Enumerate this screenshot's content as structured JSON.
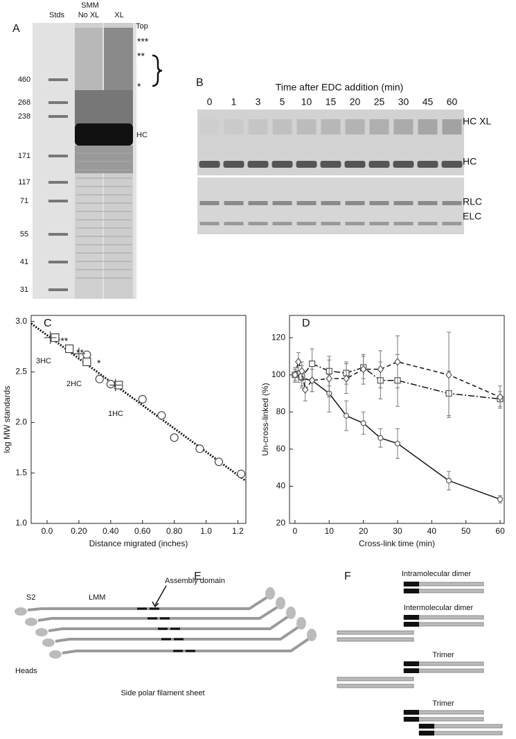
{
  "gel_a": {
    "panel_label": "A",
    "header": "SMM",
    "lanes": [
      "Stds",
      "No XL",
      "XL"
    ],
    "top_label": "Top",
    "stars": [
      "***",
      "**",
      "*"
    ],
    "band_label": "HC",
    "ladder": [
      460,
      268,
      238,
      171,
      117,
      71,
      55,
      41,
      31
    ]
  },
  "gel_b": {
    "panel_label": "B",
    "title": "Time after EDC addition (min)",
    "times": [
      0,
      1,
      3,
      5,
      10,
      15,
      20,
      25,
      30,
      45,
      60
    ],
    "band_labels": [
      "HC XL",
      "HC",
      "RLC",
      "ELC"
    ]
  },
  "chart_data": [
    {
      "type": "scatter",
      "panel_label": "C",
      "x_label": "Distance migrated (inches)",
      "y_label": "log MW standards",
      "xlim": [
        -0.1,
        1.25
      ],
      "ylim": [
        1.0,
        3.06
      ],
      "xticks": [
        {
          "value": 0,
          "label": "0.0"
        },
        {
          "value": 0.2,
          "label": "0.20"
        },
        {
          "value": 0.4,
          "label": "0.40"
        },
        {
          "value": 0.6,
          "label": "0.60"
        },
        {
          "value": 0.8,
          "label": "0.80"
        },
        {
          "value": 1,
          "label": "1.0"
        },
        {
          "value": 1.2,
          "label": "1.2"
        }
      ],
      "yticks": [
        {
          "value": 1,
          "label": "1.0"
        },
        {
          "value": 1.5,
          "label": "1.5"
        },
        {
          "value": 2,
          "label": "2.0"
        },
        {
          "value": 2.5,
          "label": "2.5"
        },
        {
          "value": 3,
          "label": "3.0"
        }
      ],
      "annotations": [
        "***",
        "**",
        "*",
        "3HC",
        "2HC",
        "1HC"
      ],
      "series": [
        {
          "color": "#111",
          "line_style": "dotted",
          "x": [
            -0.1,
            1.25
          ],
          "values": [
            2.98,
            1.42
          ]
        },
        {
          "color": "#444",
          "marker": "circle",
          "x": [
            0.25,
            0.33,
            0.4,
            0.6,
            0.72,
            0.8,
            0.96,
            1.08,
            1.22
          ],
          "values": [
            2.67,
            2.43,
            2.38,
            2.23,
            2.07,
            1.85,
            1.74,
            1.61,
            1.49
          ]
        },
        {
          "color": "#444",
          "marker": "square",
          "x": [
            0.05,
            0.14,
            0.25,
            0.45
          ],
          "values": [
            2.84,
            2.73,
            2.6,
            2.37
          ]
        },
        {
          "color": "#444",
          "marker": "plus",
          "x": [
            0.02,
            0.2,
            0.43
          ],
          "values": [
            2.84,
            2.68,
            2.37
          ]
        }
      ]
    },
    {
      "type": "line",
      "panel_label": "D",
      "x_label": "Cross-link time (min)",
      "y_label": "Un-cross-linked (%)",
      "xlim": [
        -1.6,
        61.2
      ],
      "ylim": [
        20,
        132
      ],
      "xticks": [
        0,
        10,
        20,
        30,
        40,
        50,
        60
      ],
      "yticks": [
        20,
        40,
        60,
        80,
        100,
        120
      ],
      "series": [
        {
          "color": "#111",
          "marker": "circle",
          "line_style": "solid",
          "x": [
            0,
            1,
            2,
            5,
            10,
            15,
            20,
            25,
            30,
            45,
            60
          ],
          "values": [
            100,
            101,
            98,
            97,
            90,
            78,
            74,
            66,
            63,
            43,
            33
          ],
          "errors": [
            3,
            5,
            4,
            6,
            10,
            8,
            6,
            5,
            8,
            5,
            2
          ]
        },
        {
          "color": "#111",
          "marker": "square",
          "line_style": "dashdot",
          "x": [
            0,
            2,
            5,
            10,
            15,
            20,
            25,
            30,
            45,
            60
          ],
          "values": [
            100,
            99,
            106,
            102,
            101,
            104,
            97,
            97,
            90,
            87
          ],
          "errors": [
            4,
            6,
            8,
            8,
            6,
            6,
            10,
            14,
            12,
            4
          ]
        },
        {
          "color": "#111",
          "marker": "diamond",
          "line_style": "dashed",
          "x": [
            0,
            1,
            2,
            3,
            5,
            10,
            15,
            20,
            25,
            30,
            45,
            60
          ],
          "values": [
            100,
            107,
            102,
            92,
            97,
            98,
            98,
            103,
            103,
            107,
            100,
            88
          ],
          "errors": [
            4,
            5,
            5,
            6,
            6,
            10,
            8,
            8,
            10,
            14,
            23,
            6
          ]
        }
      ]
    }
  ],
  "diagram_e": {
    "panel_label": "E",
    "labels": [
      "Assembly domain",
      "S2",
      "LMM",
      "Heads"
    ],
    "caption": "Side polar filament sheet"
  },
  "diagram_f": {
    "panel_label": "F",
    "labels": [
      "Intramolecular dimer",
      "Intermolecular dimer",
      "Trimer",
      "Trimer"
    ]
  }
}
